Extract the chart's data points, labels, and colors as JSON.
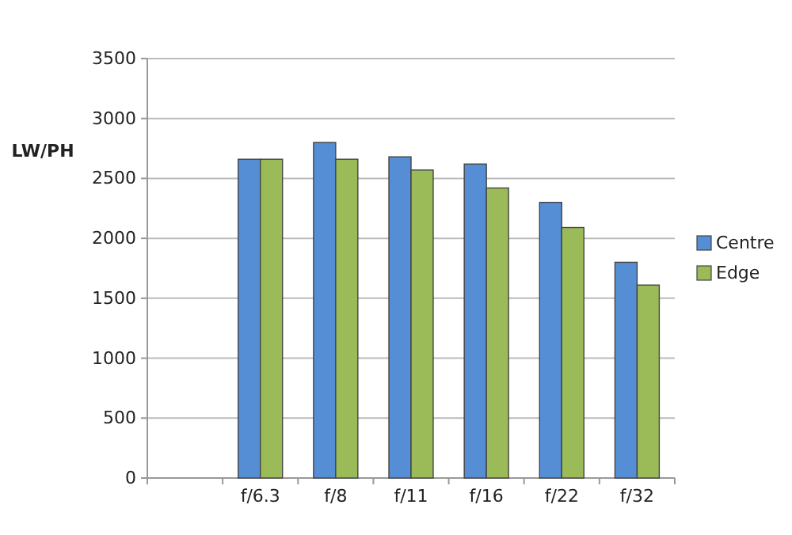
{
  "chart_data": {
    "type": "bar",
    "ylabel": "LW/PH",
    "categories": [
      null,
      "f/6.3",
      "f/8",
      "f/11",
      "f/16",
      "f/22",
      "f/32"
    ],
    "series": [
      {
        "name": "Centre",
        "color": "#558ed5",
        "values": [
          null,
          2660,
          2800,
          2680,
          2620,
          2300,
          1800
        ]
      },
      {
        "name": "Edge",
        "color": "#9bbb59",
        "values": [
          null,
          2660,
          2660,
          2570,
          2420,
          2090,
          1610
        ]
      }
    ],
    "ylim": [
      0,
      3500
    ],
    "yticks": [
      0,
      500,
      1000,
      1500,
      2000,
      2500,
      3000,
      3500
    ],
    "grid": "y",
    "legend": "right"
  }
}
